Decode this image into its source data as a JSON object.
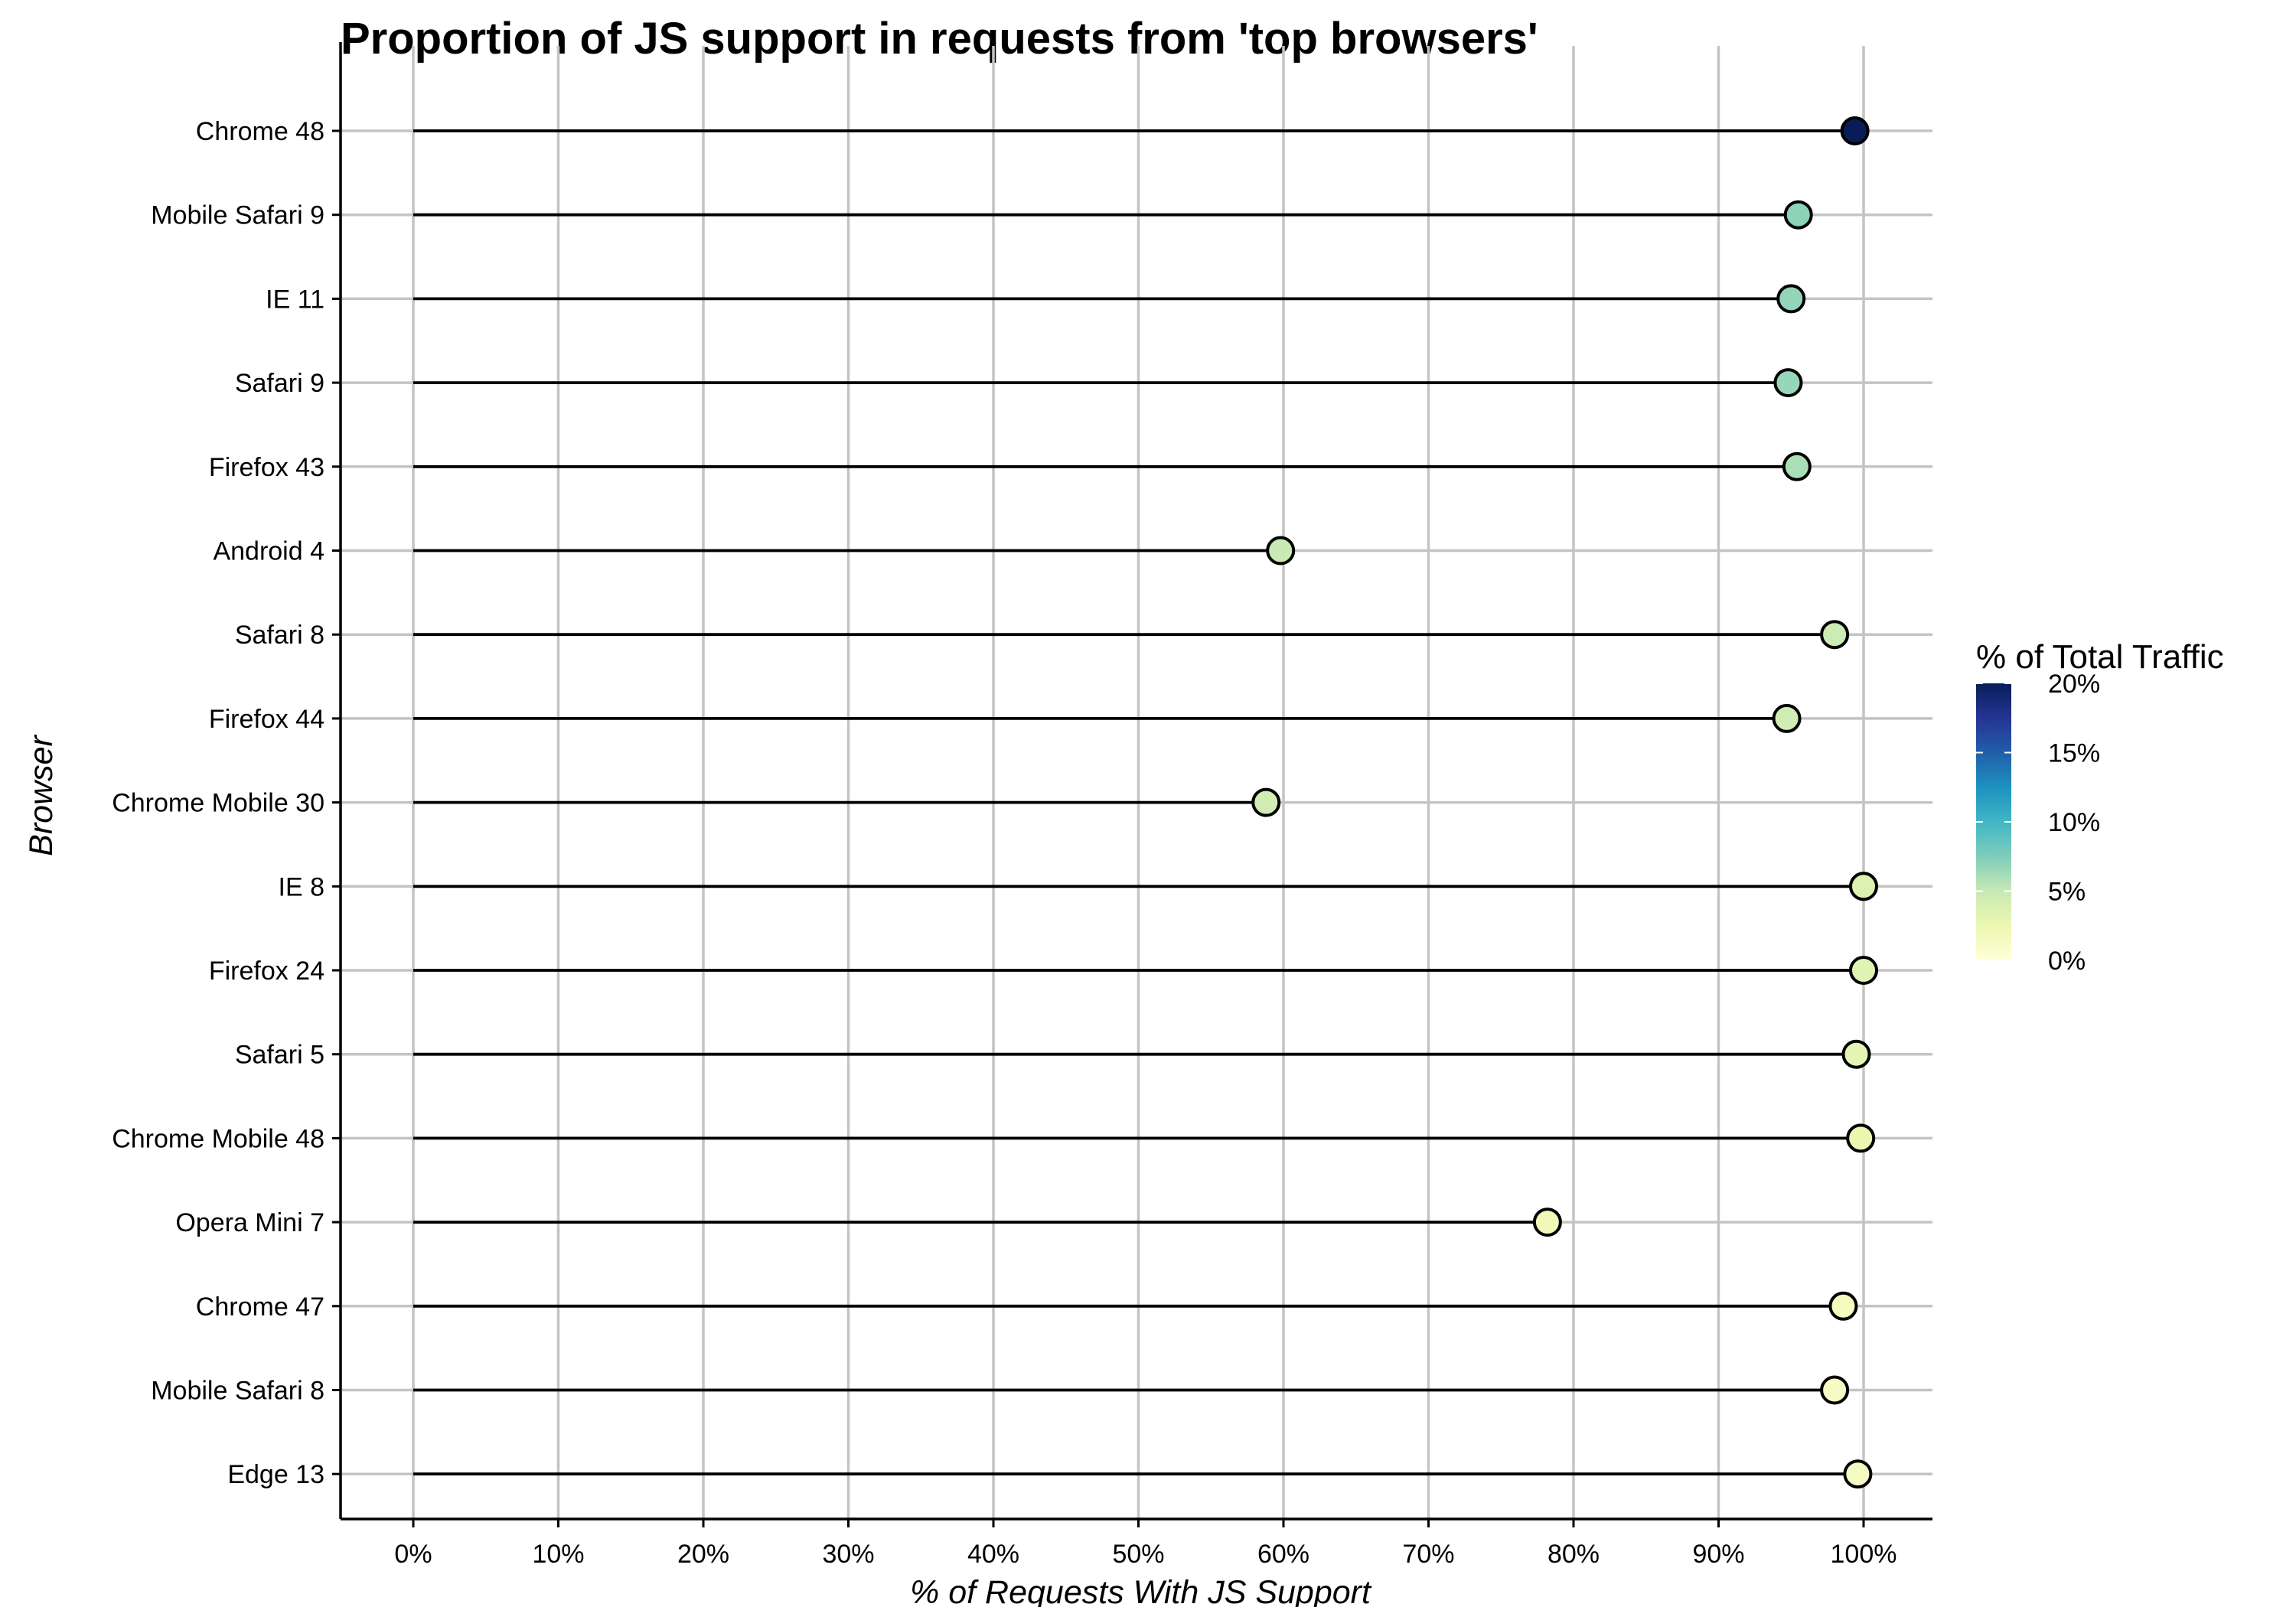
{
  "chart_data": {
    "type": "lollipop",
    "title": "Proportion of JS support in requests from 'top browsers'",
    "xlabel": "% of Requests With JS Support",
    "ylabel": "Browser",
    "xlim": [
      0,
      100
    ],
    "x_ticks": [
      "0%",
      "10%",
      "20%",
      "30%",
      "40%",
      "50%",
      "60%",
      "70%",
      "80%",
      "90%",
      "100%"
    ],
    "grid": true,
    "categories": [
      "Chrome 48",
      "Mobile Safari 9",
      "IE 11",
      "Safari 9",
      "Firefox 43",
      "Android 4",
      "Safari 8",
      "Firefox 44",
      "Chrome Mobile 30",
      "IE 8",
      "Firefox 24",
      "Safari 5",
      "Chrome Mobile 48",
      "Opera Mini 7",
      "Chrome 47",
      "Mobile Safari 8",
      "Edge 13"
    ],
    "values": [
      99.4,
      95.5,
      95.0,
      94.8,
      95.4,
      59.8,
      98.0,
      94.7,
      58.8,
      100.0,
      100.0,
      99.5,
      99.8,
      78.2,
      98.6,
      98.0,
      99.6
    ],
    "color_values": [
      20.0,
      7.0,
      6.8,
      6.7,
      6.0,
      4.9,
      4.6,
      4.4,
      4.3,
      3.6,
      3.4,
      3.1,
      2.6,
      2.1,
      1.6,
      1.4,
      1.3
    ],
    "legend": {
      "title": "% of Total Traffic",
      "position": "right",
      "ticks": [
        "0%",
        "5%",
        "10%",
        "15%",
        "20%"
      ],
      "range": [
        0,
        20
      ],
      "colors": [
        "#ffffd9",
        "#edf8b1",
        "#c7e9b4",
        "#7fcdbb",
        "#41b6c4",
        "#1d91c0",
        "#225ea8",
        "#253494",
        "#081d58"
      ]
    }
  }
}
